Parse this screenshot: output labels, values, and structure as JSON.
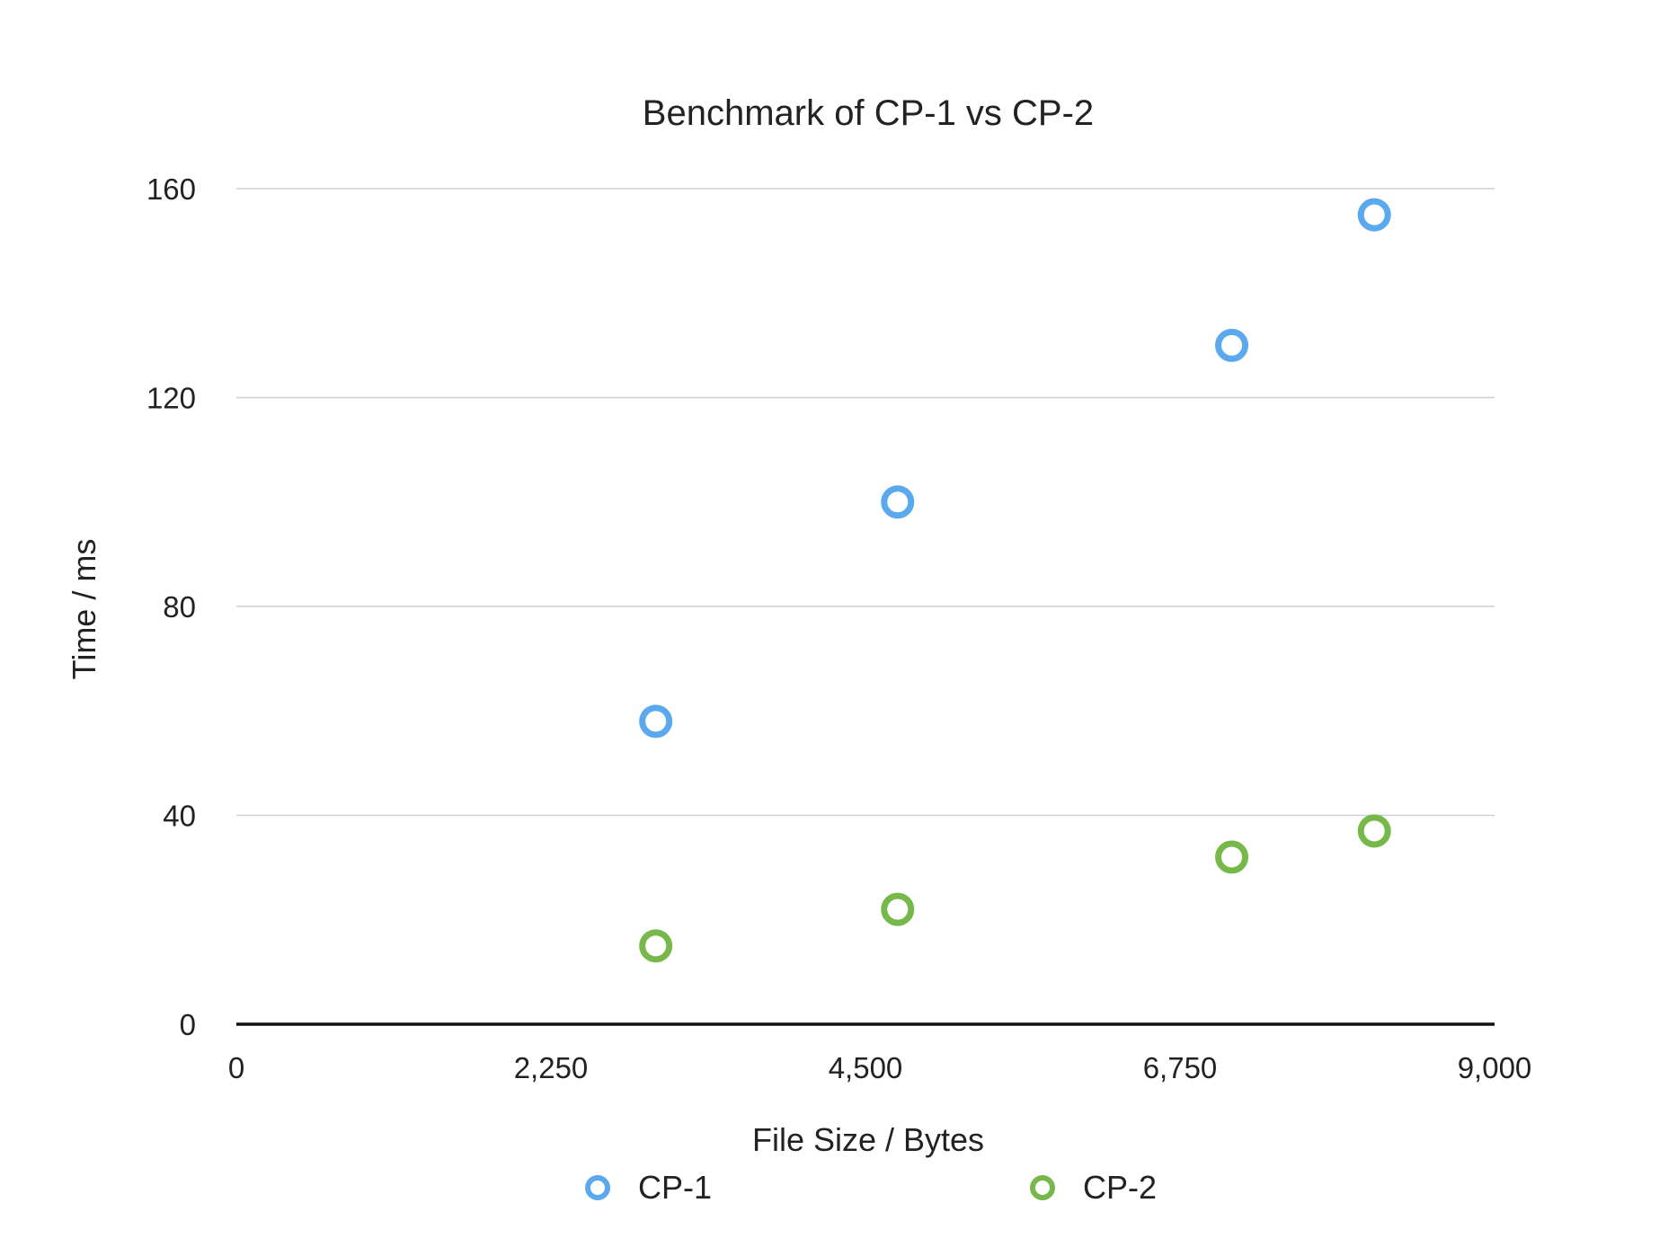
{
  "colors": {
    "cp1": "#5aa9ee",
    "cp2": "#77b84a",
    "grid": "#cfcfcf",
    "axis": "#111111",
    "text": "#222222"
  },
  "chart_data": {
    "type": "scatter",
    "title": "Benchmark of CP-1 vs CP-2",
    "xlabel": "File Size / Bytes",
    "ylabel": "Time / ms",
    "xlim": [
      0,
      9000
    ],
    "ylim": [
      0,
      160
    ],
    "x_ticks": [
      0,
      2250,
      4500,
      6750,
      9000
    ],
    "x_tick_labels": [
      "0",
      "2,250",
      "4,500",
      "6,750",
      "9,000"
    ],
    "y_ticks": [
      0,
      40,
      80,
      120,
      160
    ],
    "y_tick_labels": [
      "0",
      "40",
      "80",
      "120",
      "160"
    ],
    "grid": "horizontal",
    "legend_position": "bottom",
    "series": [
      {
        "name": "CP-1",
        "color": "#5aa9ee",
        "points": [
          {
            "x": 3000,
            "y": 58
          },
          {
            "x": 4730,
            "y": 100
          },
          {
            "x": 7120,
            "y": 130
          },
          {
            "x": 8140,
            "y": 155
          }
        ]
      },
      {
        "name": "CP-2",
        "color": "#77b84a",
        "points": [
          {
            "x": 3000,
            "y": 15
          },
          {
            "x": 4730,
            "y": 22
          },
          {
            "x": 7120,
            "y": 32
          },
          {
            "x": 8140,
            "y": 37
          }
        ]
      }
    ]
  }
}
